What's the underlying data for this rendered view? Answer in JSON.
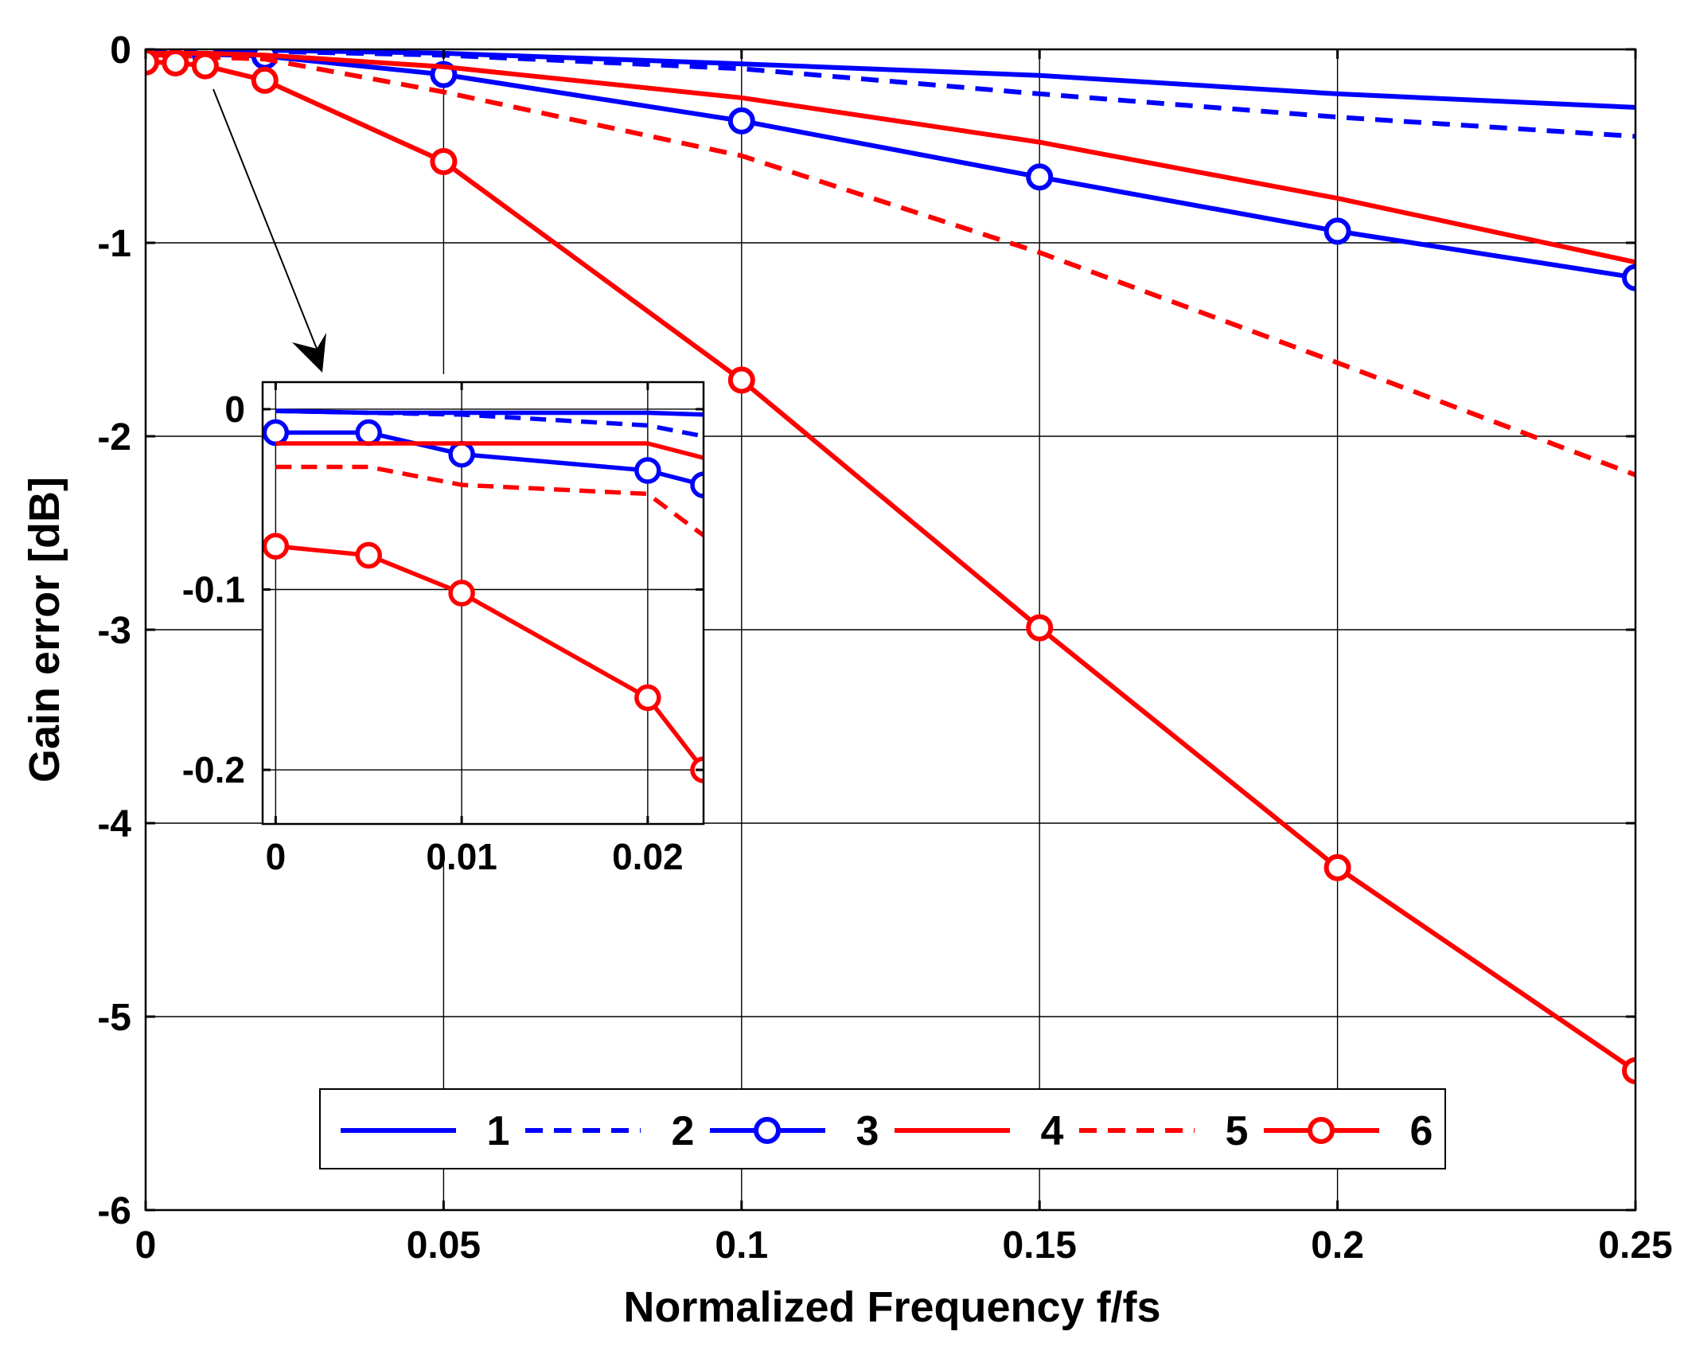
{
  "chart_data": [
    {
      "type": "line",
      "role": "main",
      "xlabel": "Normalized Frequency f/fs",
      "ylabel": "Gain error [dB]",
      "xlim": [
        0,
        0.25
      ],
      "ylim": [
        -6,
        0
      ],
      "xticks": [
        0,
        0.05,
        0.1,
        0.15,
        0.2,
        0.25
      ],
      "xtick_labels": [
        "0",
        "0.05",
        "0.1",
        "0.15",
        "0.2",
        "0.25"
      ],
      "yticks": [
        0,
        -1,
        -2,
        -3,
        -4,
        -5,
        -6
      ],
      "ytick_labels": [
        "0",
        "-1",
        "-2",
        "-3",
        "-4",
        "-5",
        "-6"
      ],
      "grid": true,
      "legend_placement": "bottom-center",
      "series": [
        {
          "name": "1",
          "color": "#0000ff",
          "style": "solid",
          "marker": "none",
          "x": [
            0,
            0.005,
            0.01,
            0.02,
            0.05,
            0.1,
            0.15,
            0.2,
            0.25
          ],
          "y": [
            -0.003,
            -0.003,
            -0.003,
            -0.004,
            -0.02,
            -0.075,
            -0.135,
            -0.23,
            -0.3
          ]
        },
        {
          "name": "2",
          "color": "#0000ff",
          "style": "dashed",
          "marker": "none",
          "x": [
            0,
            0.005,
            0.01,
            0.02,
            0.05,
            0.1,
            0.15,
            0.2,
            0.25
          ],
          "y": [
            -0.003,
            -0.004,
            -0.005,
            -0.01,
            -0.03,
            -0.1,
            -0.23,
            -0.35,
            -0.45
          ]
        },
        {
          "name": "3",
          "color": "#0000ff",
          "style": "solid",
          "marker": "circle",
          "x": [
            0,
            0.005,
            0.01,
            0.02,
            0.05,
            0.1,
            0.15,
            0.2,
            0.25
          ],
          "y": [
            -0.015,
            -0.015,
            -0.025,
            -0.035,
            -0.13,
            -0.37,
            -0.66,
            -0.94,
            -1.18
          ]
        },
        {
          "name": "4",
          "color": "#ff0000",
          "style": "solid",
          "marker": "none",
          "x": [
            0,
            0.005,
            0.01,
            0.02,
            0.05,
            0.1,
            0.15,
            0.2,
            0.25
          ],
          "y": [
            -0.02,
            -0.02,
            -0.02,
            -0.03,
            -0.09,
            -0.25,
            -0.48,
            -0.77,
            -1.1
          ]
        },
        {
          "name": "5",
          "color": "#ff0000",
          "style": "dashed",
          "marker": "none",
          "x": [
            0,
            0.005,
            0.01,
            0.02,
            0.05,
            0.1,
            0.15,
            0.2,
            0.25
          ],
          "y": [
            -0.03,
            -0.03,
            -0.04,
            -0.05,
            -0.22,
            -0.55,
            -1.05,
            -1.62,
            -2.2
          ]
        },
        {
          "name": "6",
          "color": "#ff0000",
          "style": "solid",
          "marker": "circle",
          "x": [
            0,
            0.005,
            0.01,
            0.02,
            0.05,
            0.1,
            0.15,
            0.2,
            0.25
          ],
          "y": [
            -0.065,
            -0.07,
            -0.085,
            -0.16,
            -0.58,
            -1.71,
            -2.99,
            -4.23,
            -5.28
          ]
        }
      ]
    },
    {
      "type": "line",
      "role": "inset",
      "xlim": [
        -0.0007,
        0.023
      ],
      "ylim": [
        -0.23,
        0.015
      ],
      "xticks": [
        0,
        0.01,
        0.02
      ],
      "xtick_labels": [
        "0",
        "0.01",
        "0.02"
      ],
      "yticks": [
        0,
        -0.1,
        -0.2
      ],
      "ytick_labels": [
        "0",
        "-0.1",
        "-0.2"
      ],
      "grid": true,
      "series": [
        {
          "name": "1",
          "color": "#0000ff",
          "style": "solid",
          "marker": "none",
          "x": [
            0,
            0.005,
            0.01,
            0.02,
            0.023
          ],
          "y": [
            -0.001,
            -0.002,
            -0.002,
            -0.002,
            -0.003
          ]
        },
        {
          "name": "2",
          "color": "#0000ff",
          "style": "dashed",
          "marker": "none",
          "x": [
            0,
            0.005,
            0.01,
            0.02,
            0.023
          ],
          "y": [
            -0.001,
            -0.002,
            -0.003,
            -0.009,
            -0.015
          ]
        },
        {
          "name": "3",
          "color": "#0000ff",
          "style": "solid",
          "marker": "circle",
          "x": [
            0,
            0.005,
            0.01,
            0.02,
            0.023
          ],
          "y": [
            -0.013,
            -0.013,
            -0.025,
            -0.034,
            -0.042
          ]
        },
        {
          "name": "4",
          "color": "#ff0000",
          "style": "solid",
          "marker": "none",
          "x": [
            0,
            0.005,
            0.01,
            0.02,
            0.023
          ],
          "y": [
            -0.019,
            -0.019,
            -0.019,
            -0.019,
            -0.027
          ]
        },
        {
          "name": "5",
          "color": "#ff0000",
          "style": "dashed",
          "marker": "none",
          "x": [
            0,
            0.005,
            0.01,
            0.02,
            0.023
          ],
          "y": [
            -0.032,
            -0.032,
            -0.042,
            -0.047,
            -0.07
          ]
        },
        {
          "name": "6",
          "color": "#ff0000",
          "style": "solid",
          "marker": "circle",
          "x": [
            0,
            0.005,
            0.01,
            0.02,
            0.023
          ],
          "y": [
            -0.076,
            -0.081,
            -0.102,
            -0.16,
            -0.2
          ]
        }
      ]
    }
  ]
}
